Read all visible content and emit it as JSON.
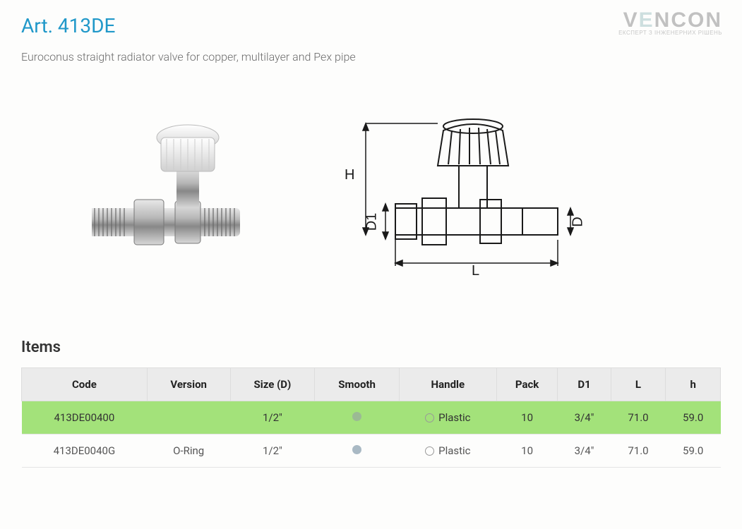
{
  "logo": {
    "text": "VENCON",
    "tagline": "ЕКСПЕРТ З ІНЖЕНЕРНИХ РІШЕНЬ"
  },
  "title": "Art. 413DE",
  "subtitle": "Euroconus straight radiator valve for copper, multilayer and Pex pipe",
  "items_heading": "Items",
  "diagram_labels": {
    "H": "H",
    "D1": "D1",
    "D": "D",
    "L": "L"
  },
  "table": {
    "columns": [
      "Code",
      "Version",
      "Size (D)",
      "Smooth",
      "Handle",
      "Pack",
      "D1",
      "L",
      "h"
    ],
    "rows": [
      {
        "code": "413DE00400",
        "version": "",
        "size": "1/2\"",
        "smooth_color": "#9bba94",
        "handle": "Plastic",
        "pack": "10",
        "d1": "3/4\"",
        "l": "71.0",
        "h": "59.0",
        "highlight": true,
        "highlight_color": "#a3e27a"
      },
      {
        "code": "413DE0040G",
        "version": "O-Ring",
        "size": "1/2\"",
        "smooth_color": "#a9b9c4",
        "handle": "Plastic",
        "pack": "10",
        "d1": "3/4\"",
        "l": "71.0",
        "h": "59.0",
        "highlight": false
      }
    ]
  },
  "colors": {
    "title": "#2098c9",
    "text": "#6a6a6a",
    "header_bg": "#ebebeb",
    "row_highlight": "#a3e27a",
    "border": "#e4e4e4"
  }
}
